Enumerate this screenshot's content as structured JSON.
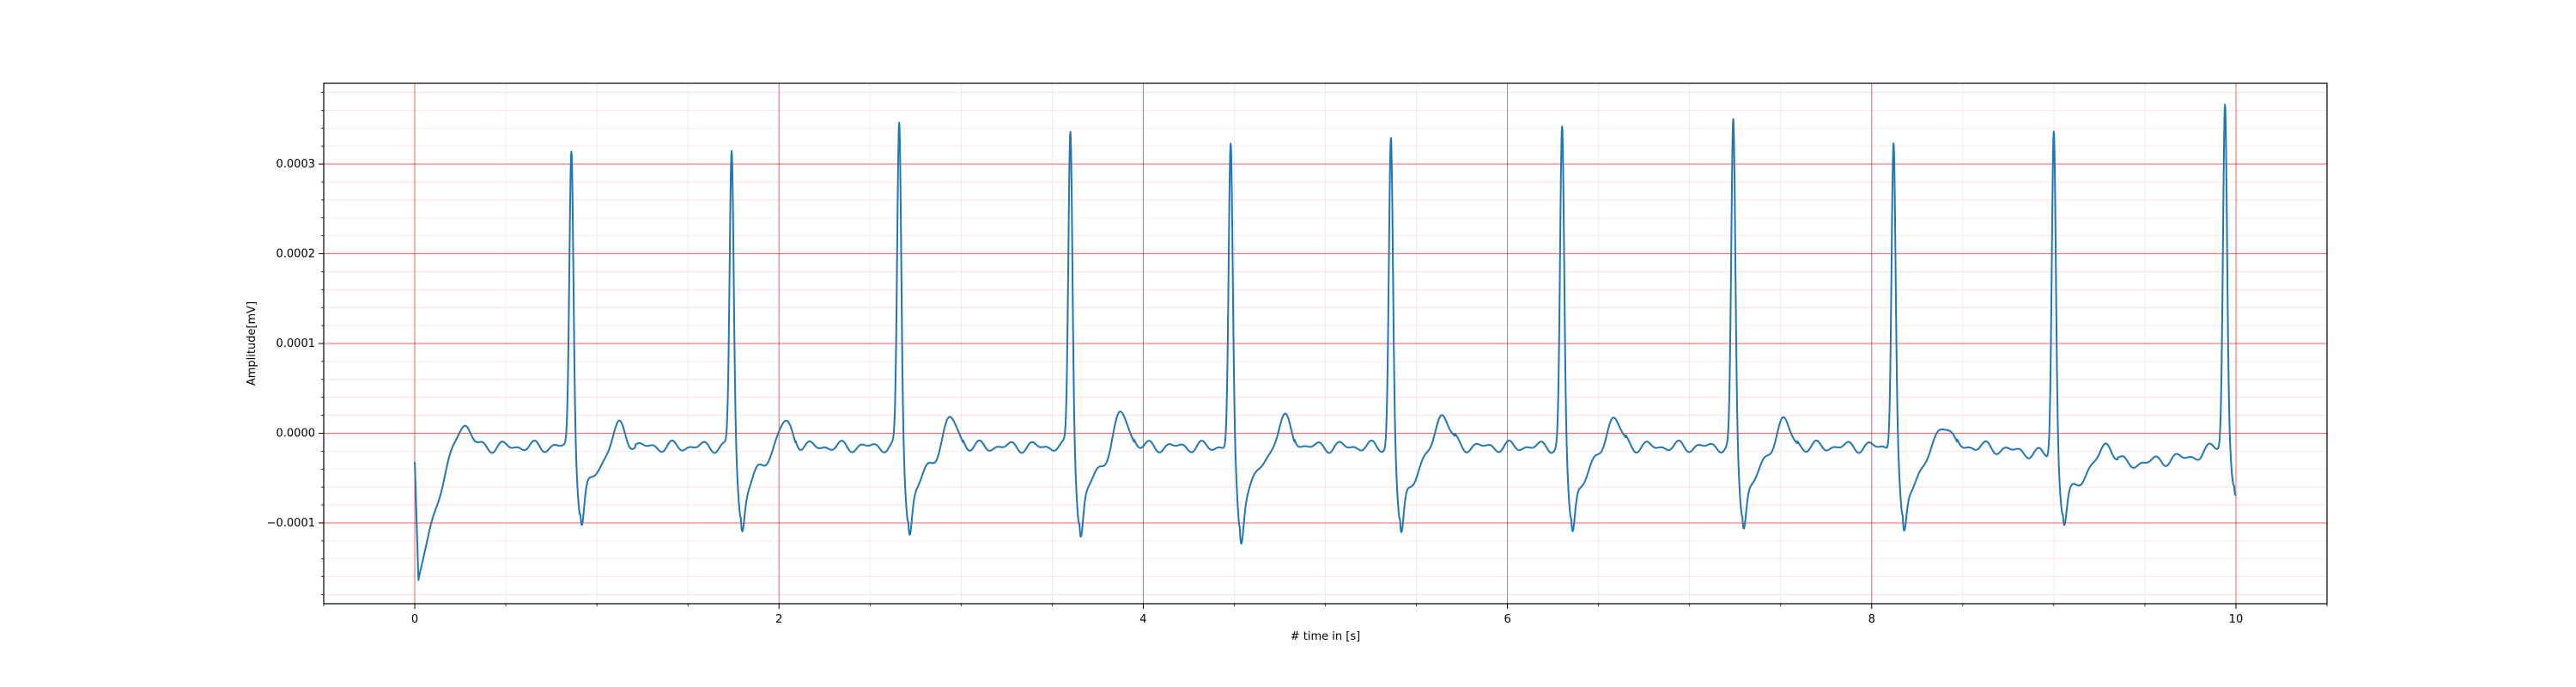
{
  "chart_data": {
    "type": "line",
    "title": "",
    "xlabel": "# time in [s]",
    "ylabel": "Amplitude[mV]",
    "xlim": [
      -0.5,
      10.5
    ],
    "ylim": [
      -0.00019,
      0.00039
    ],
    "x_ticks": [
      0,
      2,
      4,
      6,
      8,
      10
    ],
    "x_tick_labels": [
      "0",
      "2",
      "4",
      "6",
      "8",
      "10"
    ],
    "y_ticks": [
      -0.0001,
      0.0,
      0.0001,
      0.0002,
      0.0003
    ],
    "y_tick_labels": [
      "−0.0001",
      "0.0000",
      "0.0001",
      "0.0002",
      "0.0003"
    ],
    "grid": {
      "major": true,
      "minor": true,
      "major_color": "#ff0000",
      "minor_color": "#ffc0cb"
    },
    "line_color": "#1f77b4",
    "series": [
      {
        "r_peaks": [
          {
            "t": 0.86,
            "amp": 0.000315
          },
          {
            "t": 1.74,
            "amp": 0.000315
          },
          {
            "t": 2.66,
            "amp": 0.000345
          },
          {
            "t": 3.6,
            "amp": 0.000338
          },
          {
            "t": 4.48,
            "amp": 0.00032
          },
          {
            "t": 5.36,
            "amp": 0.000328
          },
          {
            "t": 6.3,
            "amp": 0.000338
          },
          {
            "t": 7.24,
            "amp": 0.000345
          },
          {
            "t": 8.12,
            "amp": 0.000327
          },
          {
            "t": 9.0,
            "amp": 0.000338
          },
          {
            "t": 9.94,
            "amp": 0.000367
          }
        ],
        "s_troughs": [
          {
            "t": 0.91,
            "amp": -9.3e-05
          },
          {
            "t": 1.79,
            "amp": -9.8e-05
          },
          {
            "t": 2.71,
            "amp": -0.000102
          },
          {
            "t": 3.65,
            "amp": -0.000105
          },
          {
            "t": 4.53,
            "amp": -0.000108
          },
          {
            "t": 5.41,
            "amp": -0.000103
          },
          {
            "t": 6.35,
            "amp": -0.0001
          },
          {
            "t": 7.29,
            "amp": -9.5e-05
          },
          {
            "t": 8.17,
            "amp": -0.000103
          },
          {
            "t": 9.05,
            "amp": -8.3e-05
          },
          {
            "t": 9.99,
            "amp": -7.8e-05
          }
        ],
        "t_waves": [
          {
            "t": 0.26,
            "amp": 2.8e-05
          },
          {
            "t": 1.12,
            "amp": 3e-05
          },
          {
            "t": 2.03,
            "amp": 3.2e-05
          },
          {
            "t": 2.94,
            "amp": 3.7e-05
          },
          {
            "t": 3.88,
            "amp": 4.3e-05
          },
          {
            "t": 4.77,
            "amp": 3.7e-05
          },
          {
            "t": 5.64,
            "amp": 4.3e-05
          },
          {
            "t": 6.58,
            "amp": 3.8e-05
          },
          {
            "t": 7.51,
            "amp": 3.6e-05
          },
          {
            "t": 8.39,
            "amp": 3.3e-05
          },
          {
            "t": 9.29,
            "amp": 2.5e-05
          }
        ],
        "baseline": [
          {
            "t": 0.0,
            "amp": -3.5e-05
          },
          {
            "t": 0.02,
            "amp": -0.000168
          },
          {
            "t": 0.3,
            "amp": -1.5e-05
          },
          {
            "t": 9.4,
            "amp": -3.5e-05
          },
          {
            "t": 9.8,
            "amp": -2.5e-05
          },
          {
            "t": 10.0,
            "amp": 0.0
          }
        ]
      }
    ]
  }
}
